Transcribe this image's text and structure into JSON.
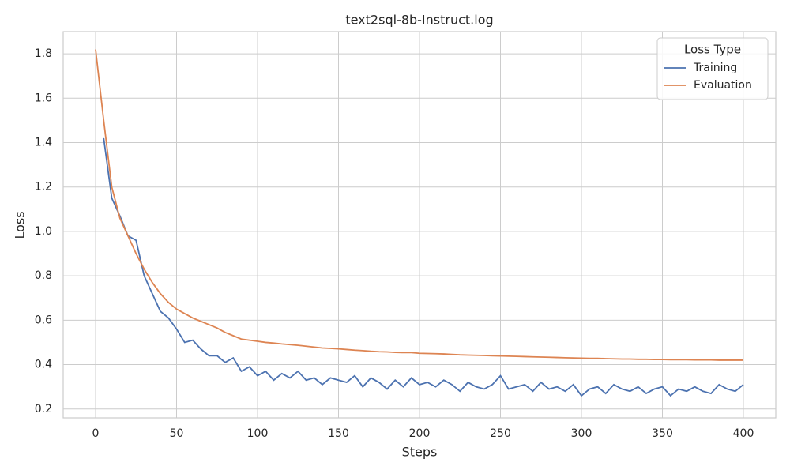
{
  "chart_data": {
    "type": "line",
    "title": "text2sql-8b-Instruct.log",
    "x_label": "Steps",
    "y_label": "Loss",
    "x": [
      0,
      5,
      10,
      15,
      20,
      25,
      30,
      35,
      40,
      45,
      50,
      55,
      60,
      65,
      70,
      75,
      80,
      85,
      90,
      95,
      100,
      105,
      110,
      115,
      120,
      125,
      130,
      135,
      140,
      145,
      150,
      155,
      160,
      165,
      170,
      175,
      180,
      185,
      190,
      195,
      200,
      205,
      210,
      215,
      220,
      225,
      230,
      235,
      240,
      245,
      250,
      255,
      260,
      265,
      270,
      275,
      280,
      285,
      290,
      295,
      300,
      305,
      310,
      315,
      320,
      325,
      330,
      335,
      340,
      345,
      350,
      355,
      360,
      365,
      370,
      375,
      380,
      385,
      390,
      395,
      400
    ],
    "series": [
      {
        "name": "Training",
        "color": "#4c72b0",
        "values": [
          null,
          1.42,
          1.15,
          1.07,
          0.98,
          0.96,
          0.8,
          0.72,
          0.64,
          0.61,
          0.56,
          0.5,
          0.51,
          0.47,
          0.44,
          0.44,
          0.41,
          0.43,
          0.37,
          0.39,
          0.35,
          0.37,
          0.33,
          0.36,
          0.34,
          0.37,
          0.33,
          0.34,
          0.31,
          0.34,
          0.33,
          0.32,
          0.35,
          0.3,
          0.34,
          0.32,
          0.29,
          0.33,
          0.3,
          0.34,
          0.31,
          0.32,
          0.3,
          0.33,
          0.31,
          0.28,
          0.32,
          0.3,
          0.29,
          0.31,
          0.35,
          0.29,
          0.3,
          0.31,
          0.28,
          0.32,
          0.29,
          0.3,
          0.28,
          0.31,
          0.26,
          0.29,
          0.3,
          0.27,
          0.31,
          0.29,
          0.28,
          0.3,
          0.27,
          0.29,
          0.3,
          0.26,
          0.29,
          0.28,
          0.3,
          0.28,
          0.27,
          0.31,
          0.29,
          0.28,
          0.31
        ]
      },
      {
        "name": "Evaluation",
        "color": "#dd8452",
        "values": [
          1.82,
          1.5,
          1.2,
          1.06,
          0.98,
          0.9,
          0.83,
          0.77,
          0.72,
          0.68,
          0.65,
          0.63,
          0.61,
          0.595,
          0.58,
          0.565,
          0.545,
          0.53,
          0.515,
          0.51,
          0.505,
          0.5,
          0.497,
          0.493,
          0.49,
          0.487,
          0.483,
          0.479,
          0.475,
          0.473,
          0.471,
          0.468,
          0.465,
          0.463,
          0.46,
          0.458,
          0.457,
          0.455,
          0.454,
          0.454,
          0.451,
          0.45,
          0.449,
          0.448,
          0.446,
          0.444,
          0.443,
          0.442,
          0.441,
          0.44,
          0.439,
          0.438,
          0.437,
          0.436,
          0.435,
          0.434,
          0.433,
          0.432,
          0.431,
          0.43,
          0.429,
          0.428,
          0.428,
          0.427,
          0.426,
          0.425,
          0.425,
          0.424,
          0.424,
          0.423,
          0.423,
          0.422,
          0.422,
          0.422,
          0.421,
          0.421,
          0.421,
          0.42,
          0.42,
          0.42,
          0.42
        ]
      }
    ],
    "legend_title": "Loss Type",
    "legend": "upper right",
    "xlim": [
      -20,
      420
    ],
    "xticks": [
      0,
      50,
      100,
      150,
      200,
      250,
      300,
      350,
      400
    ],
    "ylim": [
      0.16,
      1.9
    ],
    "yticks": [
      0.2,
      0.4,
      0.6,
      0.8,
      {
        "value": 1,
        "label": "1.0"
      },
      1.2,
      1.4,
      1.6,
      1.8
    ],
    "grid": true
  }
}
